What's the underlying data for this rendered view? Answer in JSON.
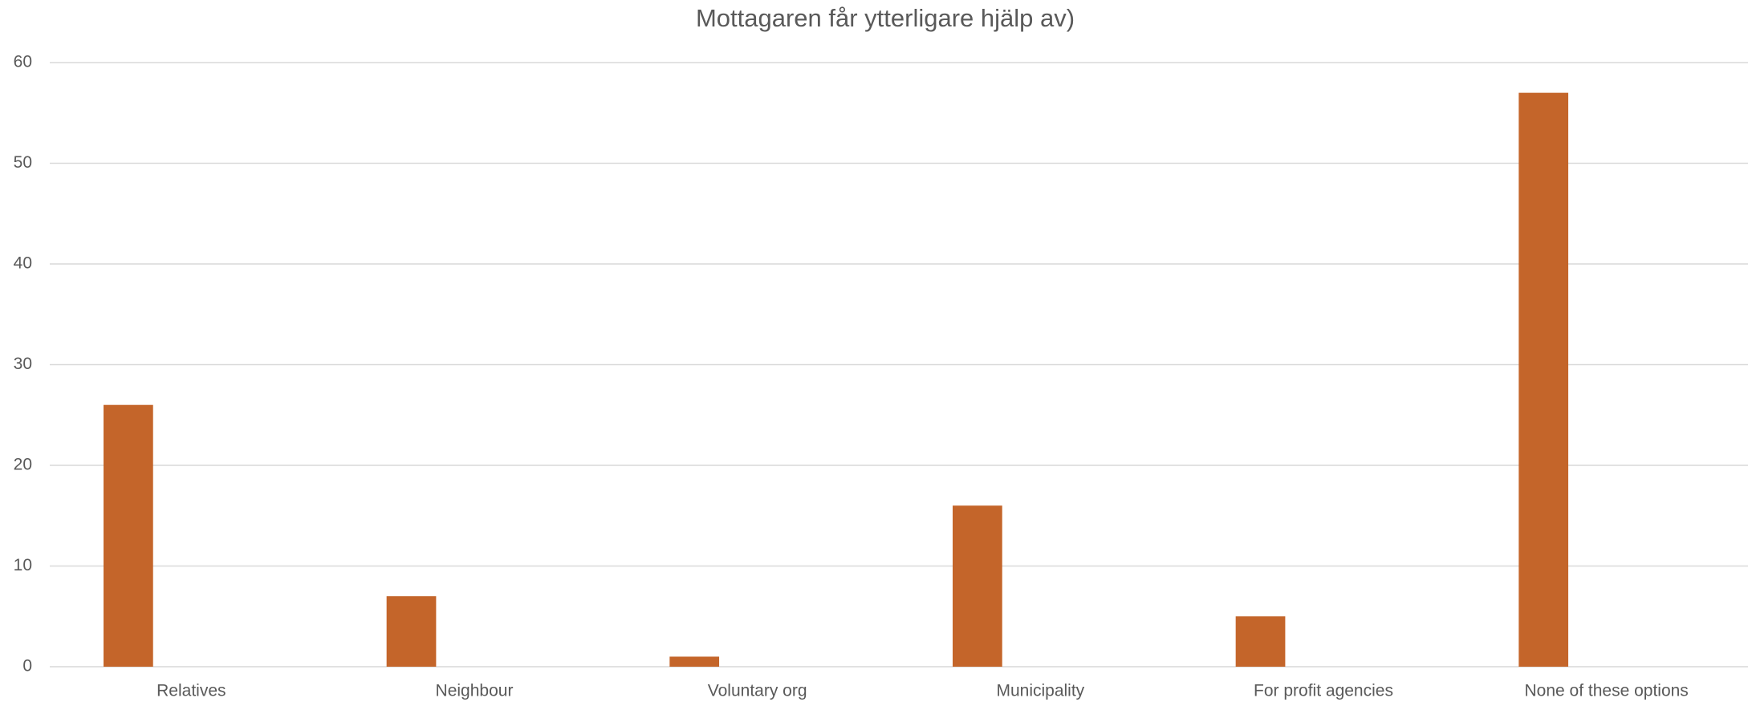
{
  "chart_data": {
    "type": "bar",
    "title": "Mottagaren får ytterligare hjälp av)",
    "categories": [
      "Relatives",
      "Neighbour",
      "Voluntary org",
      "Municipality",
      "For profit agencies",
      "None of these options"
    ],
    "values": [
      26,
      7,
      1,
      16,
      5,
      57
    ],
    "color": "#c4652a",
    "ylim": [
      0,
      60
    ],
    "yticks": [
      0,
      10,
      20,
      30,
      40,
      50,
      60
    ],
    "grid": true
  }
}
